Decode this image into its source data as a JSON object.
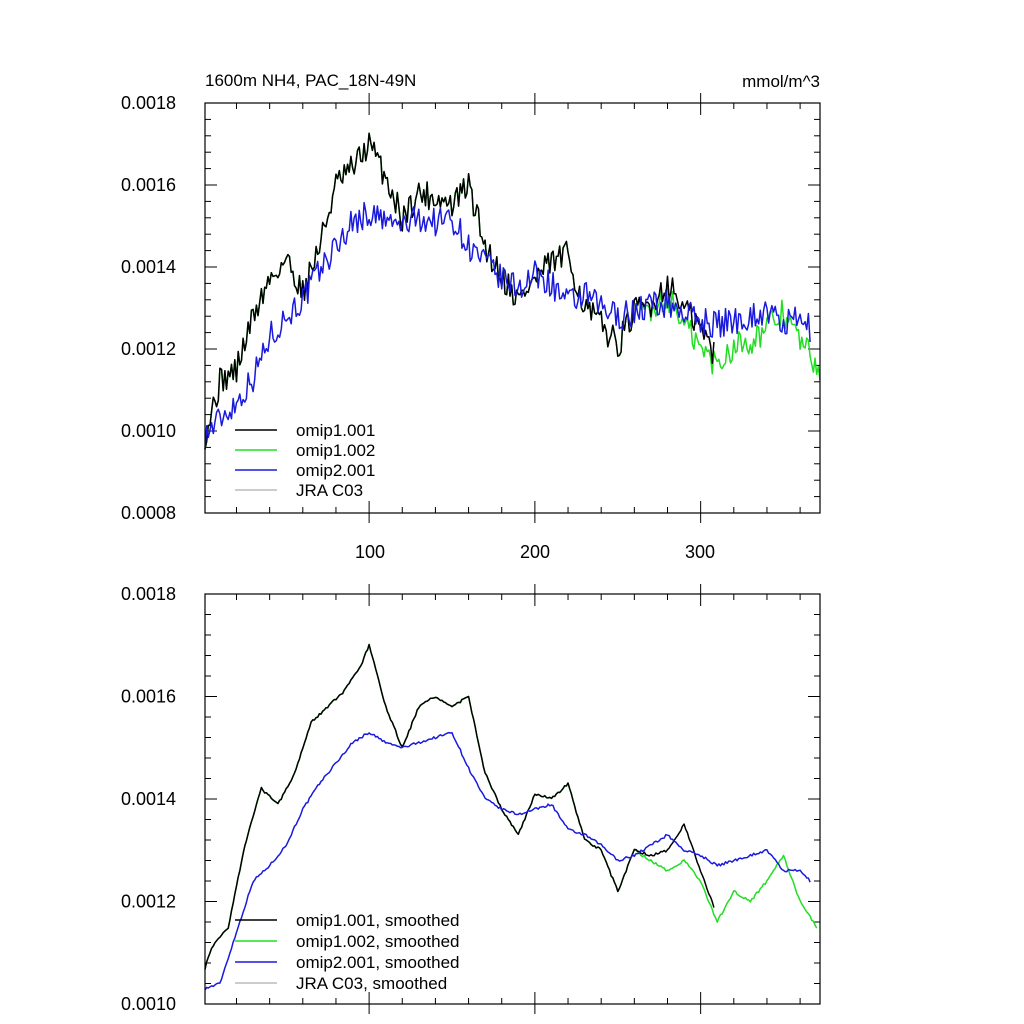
{
  "chart_data": [
    {
      "type": "line",
      "title_left": "1600m NH4, PAC_18N-49N",
      "title_right": "mmol/m^3",
      "xlabel": "",
      "ylabel": "",
      "xlim": [
        1,
        372
      ],
      "ylim": [
        0.0008,
        0.0018
      ],
      "x_ticks": [
        100,
        200,
        300
      ],
      "x_tick_labels": [
        "100",
        "200",
        "300"
      ],
      "y_ticks": [
        0.0008,
        0.001,
        0.0012,
        0.0014,
        0.0016,
        0.0018
      ],
      "y_tick_labels": [
        "0.0008",
        "0.0010",
        "0.0012",
        "0.0014",
        "0.0016",
        "0.0018"
      ],
      "legend_position": "bottom-left",
      "series": [
        {
          "name": "omip1.001",
          "color": "#000000",
          "x": [
            1,
            10,
            20,
            30,
            40,
            50,
            60,
            70,
            80,
            90,
            100,
            110,
            120,
            130,
            140,
            150,
            160,
            170,
            180,
            190,
            200,
            210,
            220,
            230,
            240,
            250,
            260,
            270,
            280,
            290,
            300,
            308
          ],
          "y": [
            0.00099,
            0.00112,
            0.00115,
            0.00128,
            0.00137,
            0.00142,
            0.00134,
            0.00145,
            0.0016,
            0.00164,
            0.0017,
            0.00162,
            0.00152,
            0.00158,
            0.00157,
            0.00155,
            0.0016,
            0.00145,
            0.00138,
            0.00132,
            0.00137,
            0.00141,
            0.00143,
            0.0013,
            0.00126,
            0.00121,
            0.00129,
            0.00131,
            0.00136,
            0.0013,
            0.00125,
            0.00119
          ]
        },
        {
          "name": "omip1.002",
          "color": "#22dd22",
          "x": [
            1,
            10,
            20,
            30,
            40,
            50,
            60,
            70,
            80,
            90,
            100,
            110,
            120,
            130,
            140,
            150,
            160,
            170,
            180,
            190,
            200,
            210,
            220,
            230,
            240,
            250,
            260,
            270,
            280,
            290,
            300,
            310,
            320,
            330,
            340,
            350,
            360,
            372
          ],
          "y": [
            0.00099,
            0.00112,
            0.00115,
            0.00128,
            0.00137,
            0.00142,
            0.00134,
            0.00145,
            0.0016,
            0.00164,
            0.0017,
            0.00162,
            0.00152,
            0.00158,
            0.00157,
            0.00155,
            0.0016,
            0.00145,
            0.00138,
            0.00132,
            0.00137,
            0.00141,
            0.00143,
            0.0013,
            0.00126,
            0.00121,
            0.00129,
            0.0013,
            0.00133,
            0.00126,
            0.0012,
            0.00116,
            0.00121,
            0.00122,
            0.00125,
            0.00129,
            0.00122,
            0.00115
          ]
        },
        {
          "name": "omip2.001",
          "color": "#1a1add",
          "x": [
            1,
            10,
            20,
            30,
            40,
            50,
            60,
            70,
            80,
            90,
            100,
            110,
            120,
            130,
            140,
            150,
            160,
            170,
            180,
            190,
            200,
            210,
            220,
            230,
            240,
            250,
            260,
            270,
            280,
            290,
            300,
            310,
            320,
            330,
            340,
            350,
            360,
            366
          ],
          "y": [
            0.00099,
            0.00103,
            0.00107,
            0.00113,
            0.00123,
            0.00128,
            0.00132,
            0.00139,
            0.00145,
            0.00151,
            0.00153,
            0.00151,
            0.0015,
            0.00152,
            0.00151,
            0.00152,
            0.00145,
            0.00141,
            0.00137,
            0.00135,
            0.00138,
            0.00136,
            0.00131,
            0.00133,
            0.0013,
            0.00128,
            0.00129,
            0.00131,
            0.00131,
            0.00129,
            0.00127,
            0.00126,
            0.00127,
            0.00128,
            0.00129,
            0.00126,
            0.00127,
            0.00125
          ]
        },
        {
          "name": "JRA C03",
          "color": "#bbbbbb",
          "x": [],
          "y": []
        }
      ]
    },
    {
      "type": "line",
      "title_left": "",
      "title_right": "",
      "xlabel": "",
      "ylabel": "",
      "xlim": [
        1,
        372
      ],
      "ylim": [
        0.001,
        0.0018
      ],
      "x_ticks": [
        100,
        200,
        300
      ],
      "x_tick_labels": [],
      "y_ticks": [
        0.001,
        0.0012,
        0.0014,
        0.0016,
        0.0018
      ],
      "y_tick_labels": [
        "0.0010",
        "0.0012",
        "0.0014",
        "0.0016",
        "0.0018"
      ],
      "legend_position": "bottom-left",
      "series": [
        {
          "name": "omip1.001, smoothed",
          "color": "#000000",
          "x": [
            1,
            5,
            15,
            25,
            35,
            45,
            55,
            65,
            75,
            85,
            95,
            100,
            110,
            120,
            130,
            140,
            150,
            160,
            170,
            180,
            190,
            200,
            210,
            220,
            230,
            240,
            250,
            260,
            270,
            280,
            290,
            300,
            308
          ],
          "y": [
            0.00107,
            0.00111,
            0.00115,
            0.00131,
            0.00142,
            0.00139,
            0.00145,
            0.00155,
            0.00158,
            0.00161,
            0.00166,
            0.0017,
            0.00158,
            0.0015,
            0.00158,
            0.0016,
            0.00158,
            0.0016,
            0.00145,
            0.00138,
            0.00133,
            0.00141,
            0.0014,
            0.00143,
            0.00132,
            0.0013,
            0.00122,
            0.0013,
            0.00129,
            0.0013,
            0.00135,
            0.00126,
            0.00119
          ]
        },
        {
          "name": "omip1.002, smoothed",
          "color": "#22dd22",
          "x": [
            1,
            5,
            15,
            25,
            35,
            45,
            55,
            65,
            75,
            85,
            95,
            100,
            110,
            120,
            130,
            140,
            150,
            160,
            170,
            180,
            190,
            200,
            210,
            220,
            230,
            240,
            250,
            260,
            270,
            280,
            290,
            300,
            310,
            320,
            330,
            340,
            350,
            360,
            370
          ],
          "y": [
            0.00107,
            0.00111,
            0.00115,
            0.00131,
            0.00142,
            0.00139,
            0.00145,
            0.00155,
            0.00158,
            0.00161,
            0.00166,
            0.0017,
            0.00158,
            0.0015,
            0.00158,
            0.0016,
            0.00158,
            0.0016,
            0.00145,
            0.00138,
            0.00133,
            0.00141,
            0.0014,
            0.00143,
            0.00132,
            0.0013,
            0.00122,
            0.0013,
            0.00128,
            0.00126,
            0.00128,
            0.00124,
            0.00116,
            0.00122,
            0.0012,
            0.00124,
            0.00129,
            0.0012,
            0.00115
          ]
        },
        {
          "name": "omip2.001, smoothed",
          "color": "#1a1add",
          "x": [
            1,
            10,
            20,
            30,
            40,
            50,
            60,
            70,
            80,
            90,
            100,
            110,
            120,
            130,
            140,
            150,
            160,
            170,
            180,
            190,
            200,
            210,
            220,
            230,
            240,
            250,
            260,
            270,
            280,
            290,
            300,
            310,
            320,
            330,
            340,
            350,
            360,
            366
          ],
          "y": [
            0.00103,
            0.00104,
            0.00114,
            0.00124,
            0.00127,
            0.00131,
            0.00138,
            0.00143,
            0.00147,
            0.00151,
            0.00153,
            0.00151,
            0.0015,
            0.00151,
            0.00152,
            0.00153,
            0.00146,
            0.0014,
            0.00138,
            0.00137,
            0.00138,
            0.00139,
            0.00134,
            0.00133,
            0.00131,
            0.00128,
            0.00129,
            0.00131,
            0.00133,
            0.0013,
            0.00129,
            0.00127,
            0.00128,
            0.00129,
            0.0013,
            0.00126,
            0.00126,
            0.00124
          ]
        },
        {
          "name": "JRA C03, smoothed",
          "color": "#bbbbbb",
          "x": [],
          "y": []
        }
      ]
    }
  ]
}
